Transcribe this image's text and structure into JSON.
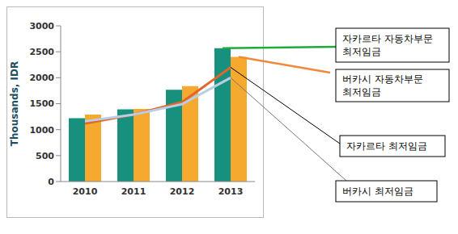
{
  "chart_data": {
    "type": "bar",
    "y_label": "Thousands, IDR",
    "categories": [
      "2010",
      "2011",
      "2012",
      "2013"
    ],
    "ylim": [
      0,
      3000
    ],
    "yticks": [
      0,
      500,
      1000,
      1500,
      2000,
      2500,
      3000
    ],
    "grid": false,
    "series": [
      {
        "name": "자카르타 자동차부문 최저임금",
        "type": "bar",
        "color": "#17907e",
        "values": [
          1220,
          1390,
          1770,
          2570
        ]
      },
      {
        "name": "버카시 자동차부문 최저임금",
        "type": "bar",
        "color": "#f6a92f",
        "values": [
          1290,
          1400,
          1840,
          2400
        ]
      },
      {
        "name": "자카르타 최저임금",
        "type": "line",
        "color": "#e2662c",
        "values": [
          1120,
          1290,
          1530,
          2200
        ]
      },
      {
        "name": "버카시 최저임금",
        "type": "line",
        "color": "#b9cde5",
        "values": [
          1160,
          1290,
          1490,
          2000
        ]
      }
    ]
  }
}
